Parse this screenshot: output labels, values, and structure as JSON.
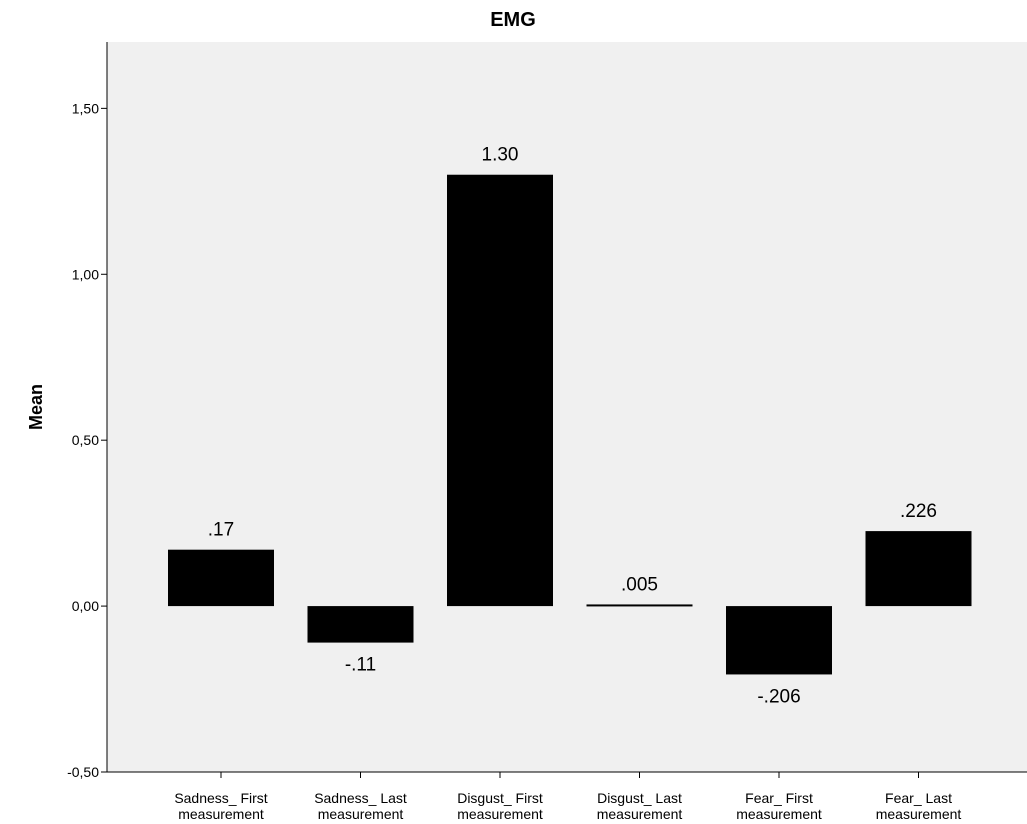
{
  "chart_data": {
    "type": "bar",
    "title": "EMG",
    "xlabel": "",
    "ylabel": "Mean",
    "ylim": [
      -0.5,
      1.7
    ],
    "yticks": [
      -0.5,
      0,
      0.5,
      1,
      1.5
    ],
    "ytick_labels": [
      "-0,50",
      "0,00",
      "0,50",
      "1,00",
      "1,50"
    ],
    "categories": [
      [
        "Sadness_ First",
        "measurement"
      ],
      [
        "Sadness_ Last",
        "measurement"
      ],
      [
        "Disgust_ First",
        "measurement"
      ],
      [
        "Disgust_ Last",
        "measurement"
      ],
      [
        "Fear_ First",
        "measurement"
      ],
      [
        "Fear_ Last",
        "measurement"
      ]
    ],
    "values": [
      0.17,
      -0.11,
      1.3,
      0.005,
      -0.206,
      0.226
    ],
    "data_labels": [
      ".17",
      "-.11",
      "1.30",
      ".005",
      "-.206",
      ".226"
    ],
    "grid": false,
    "legend": false,
    "colors": {
      "bar": "#000000",
      "plot_background": "#f0f0f0",
      "axis": "#000000"
    }
  }
}
